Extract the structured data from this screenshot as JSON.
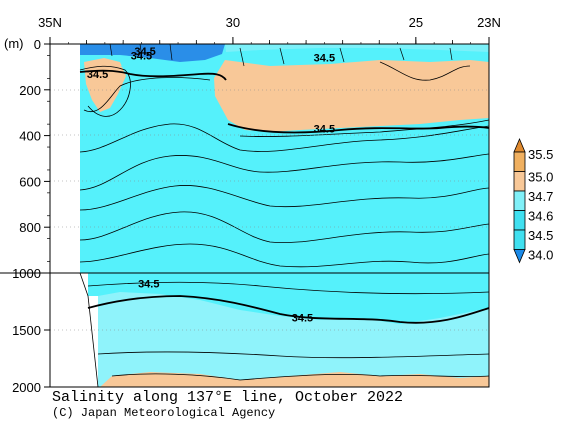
{
  "chart_data": {
    "type": "heatmap",
    "title": "Salinity along 137°E line, October 2022",
    "credit": "(C) Japan Meteorological Agency",
    "ylabel": "(m)",
    "x_ticks": [
      {
        "label": "35N",
        "lat": 35
      },
      {
        "label": "30",
        "lat": 30
      },
      {
        "label": "25",
        "lat": 25
      },
      {
        "label": "23N",
        "lat": 23
      }
    ],
    "xlim": [
      35,
      23
    ],
    "y_ticks_upper": [
      "0",
      "200",
      "400",
      "600",
      "800",
      "1000"
    ],
    "y_ticks_lower": [
      "1500",
      "2000"
    ],
    "ylim_upper": [
      0,
      1000
    ],
    "ylim_lower": [
      1000,
      2000
    ],
    "colorbar": {
      "levels": [
        "35.5",
        "35.0",
        "34.7",
        "34.6",
        "34.5",
        "34.0"
      ],
      "colors": [
        "#e08a2e",
        "#f0b060",
        "#f8c898",
        "#80f0f8",
        "#40e0f0",
        "#1a8ae8"
      ]
    },
    "contour_labels": [
      {
        "text": "34.5",
        "lat": 32.4,
        "depth": 30
      },
      {
        "text": "34.5",
        "lat": 32.5,
        "depth": 50
      },
      {
        "text": "34.5",
        "lat": 33.7,
        "depth": 130
      },
      {
        "text": "34.5",
        "lat": 27.5,
        "depth": 60
      },
      {
        "text": "34.5",
        "lat": 27.5,
        "depth": 370
      },
      {
        "text": "34.5",
        "lat": 32.3,
        "depth": 1090
      },
      {
        "text": "34.5",
        "lat": 28.1,
        "depth": 1390
      }
    ]
  }
}
